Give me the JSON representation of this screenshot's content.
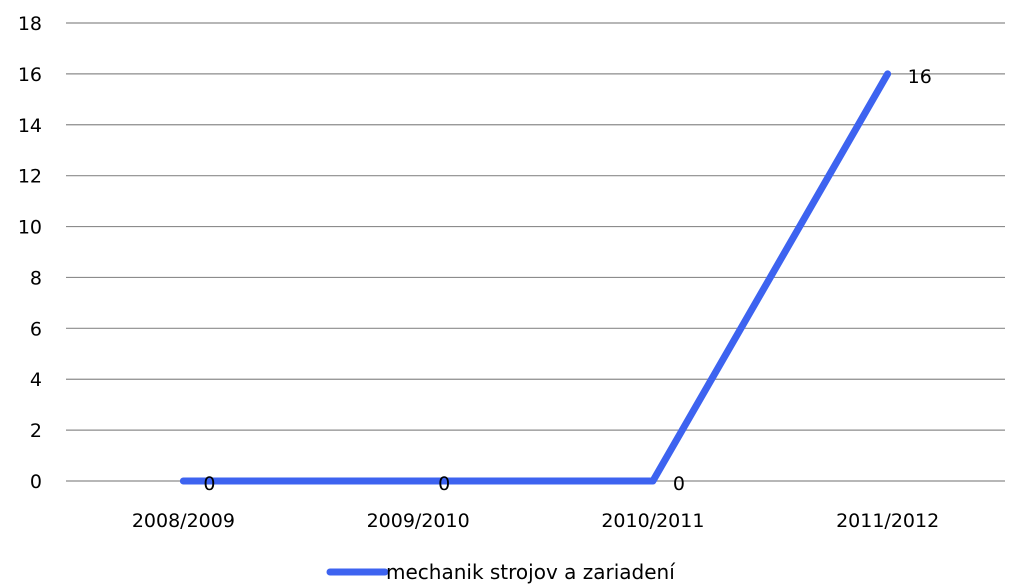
{
  "chart_data": {
    "type": "line",
    "categories": [
      "2008/2009",
      "2009/2010",
      "2010/2011",
      "2011/2012"
    ],
    "series": [
      {
        "name": "mechanik strojov a zariadení",
        "values": [
          0,
          0,
          0,
          16
        ],
        "color": "#3D63F0"
      }
    ],
    "ylim": [
      0,
      18
    ],
    "y_ticks": [
      0,
      2,
      4,
      6,
      8,
      10,
      12,
      14,
      16,
      18
    ],
    "data_labels": [
      "0",
      "0",
      "0",
      "16"
    ],
    "grid": true,
    "legend_position": "bottom",
    "title": "",
    "xlabel": "",
    "ylabel": ""
  }
}
